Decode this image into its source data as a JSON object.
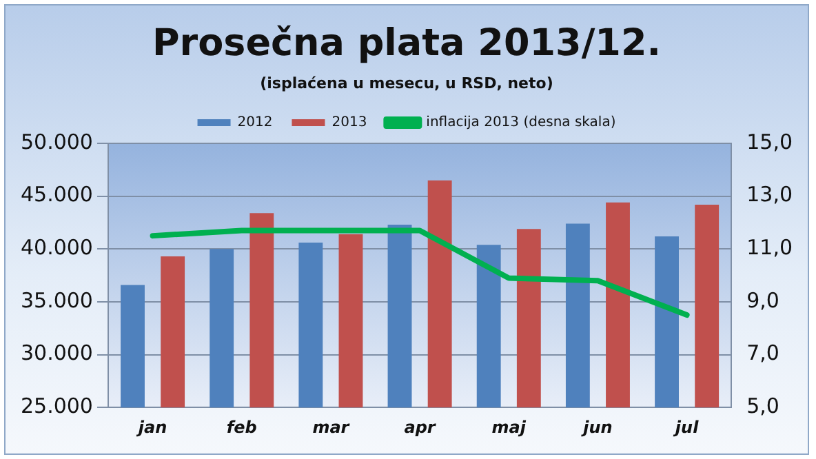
{
  "chart_data": {
    "type": "bar",
    "title": "Prosečna plata 2013/12.",
    "subtitle": "(isplaćena u mesecu, u RSD, neto)",
    "categories": [
      "jan",
      "feb",
      "mar",
      "apr",
      "maj",
      "jun",
      "jul"
    ],
    "series": [
      {
        "name": "2012",
        "color": "#4f81bd",
        "values": [
          36600,
          40000,
          40600,
          42300,
          40400,
          42400,
          41200
        ]
      },
      {
        "name": "2013",
        "color": "#c0504d",
        "values": [
          39300,
          43400,
          41400,
          46500,
          41900,
          44400,
          44200
        ]
      },
      {
        "name": "inflacija 2013 (desna skala)",
        "type": "line",
        "axis": "y2",
        "color": "#00b050",
        "values": [
          11.5,
          11.7,
          11.7,
          11.7,
          9.9,
          9.8,
          8.5
        ]
      }
    ],
    "ylim": [
      25000,
      50000
    ],
    "yticks": [
      {
        "value": 25000,
        "label": "25.000"
      },
      {
        "value": 30000,
        "label": "30.000"
      },
      {
        "value": 35000,
        "label": "35.000"
      },
      {
        "value": 40000,
        "label": "40.000"
      },
      {
        "value": 45000,
        "label": "45.000"
      },
      {
        "value": 50000,
        "label": "50.000"
      }
    ],
    "y2lim": [
      5,
      15
    ],
    "y2ticks": [
      {
        "value": 5,
        "label": "5,0"
      },
      {
        "value": 7,
        "label": "7,0"
      },
      {
        "value": 9,
        "label": "9,0"
      },
      {
        "value": 11,
        "label": "11,0"
      },
      {
        "value": 13,
        "label": "13,0"
      },
      {
        "value": 15,
        "label": "15,0"
      }
    ],
    "grid": "y",
    "legend": "top",
    "marker": "none",
    "line_style": "solid"
  }
}
